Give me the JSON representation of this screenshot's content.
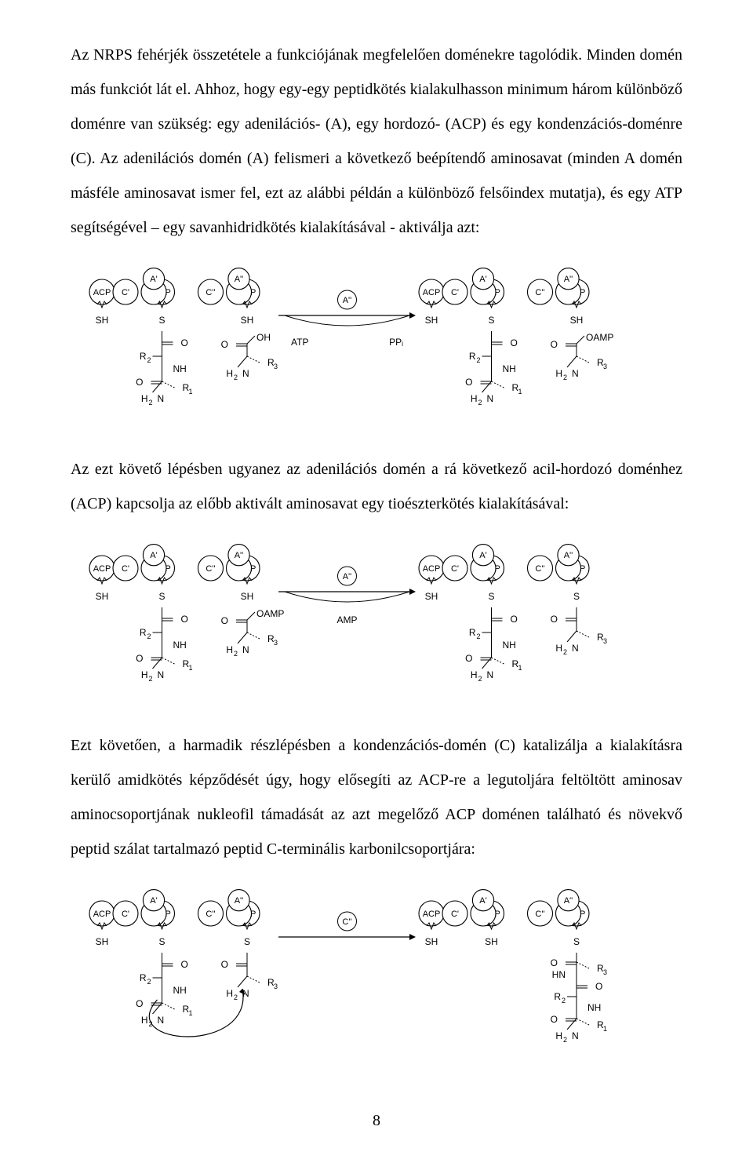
{
  "text": {
    "para1": "Az NRPS fehérjék összetétele a funkciójának megfelelően doménekre tagolódik. Minden domén más funkciót lát el. Ahhoz, hogy egy-egy peptidkötés kialakulhasson minimum három különböző doménre van szükség: egy adenilációs- (A), egy hordozó- (ACP) és egy kondenzációs-doménre (C). Az adenilációs domén (A) felismeri a következő beépítendő aminosavat (minden A domén másféle aminosavat ismer fel, ezt az alábbi példán a különböző felsőindex mutatja), és egy ATP segítségével – egy savanhidridkötés kialakításával - aktiválja azt:",
    "para2": "Az ezt követő lépésben ugyanez az adenilációs domén a rá következő acil-hordozó doménhez (ACP) kapcsolja az előbb aktivált aminosavat egy tioészterkötés kialakításával:",
    "para3": "Ezt követően, a harmadik részlépésben a kondenzációs-domén (C) katalizálja a kialakításra kerülő amidkötés képződését úgy, hogy elősegíti az ACP-re a legutoljára feltöltött aminosav aminocsoportjának nukleofil támadását az azt megelőző ACP doménen található és növekvő peptid szálat tartalmazó peptid C-terminális karbonilcsoportjára:",
    "pageNumber": "8"
  },
  "schemes": {
    "common": {
      "domainLabels": {
        "module1": [
          "ACP",
          "C'",
          "A'",
          "ACP"
        ],
        "module2": [
          "C''",
          "A''",
          "ACP"
        ]
      },
      "text_color": "#000000",
      "line_color": "#000000",
      "font_family": "Arial, sans-serif",
      "circle_r": 16,
      "circle_fill": "#ffffff",
      "circle_stroke": "#000000",
      "circle_stroke_width": 1.1,
      "font_size_domain": 11,
      "font_size_chem": 12,
      "font_size_sub": 9
    },
    "scheme1": {
      "right_terminal": "OH",
      "right_terminal_product": "OAMP",
      "arrow_top": "A''",
      "arrow_bottom_left": "ATP",
      "arrow_bottom_right": "PPᵢ"
    },
    "scheme2": {
      "right_terminal": "OAMP",
      "arrow_top": "A''",
      "arrow_bottom": "AMP"
    },
    "scheme3": {
      "arrow_top": "C''",
      "product_acp2_terminal_S_chain": true
    }
  }
}
